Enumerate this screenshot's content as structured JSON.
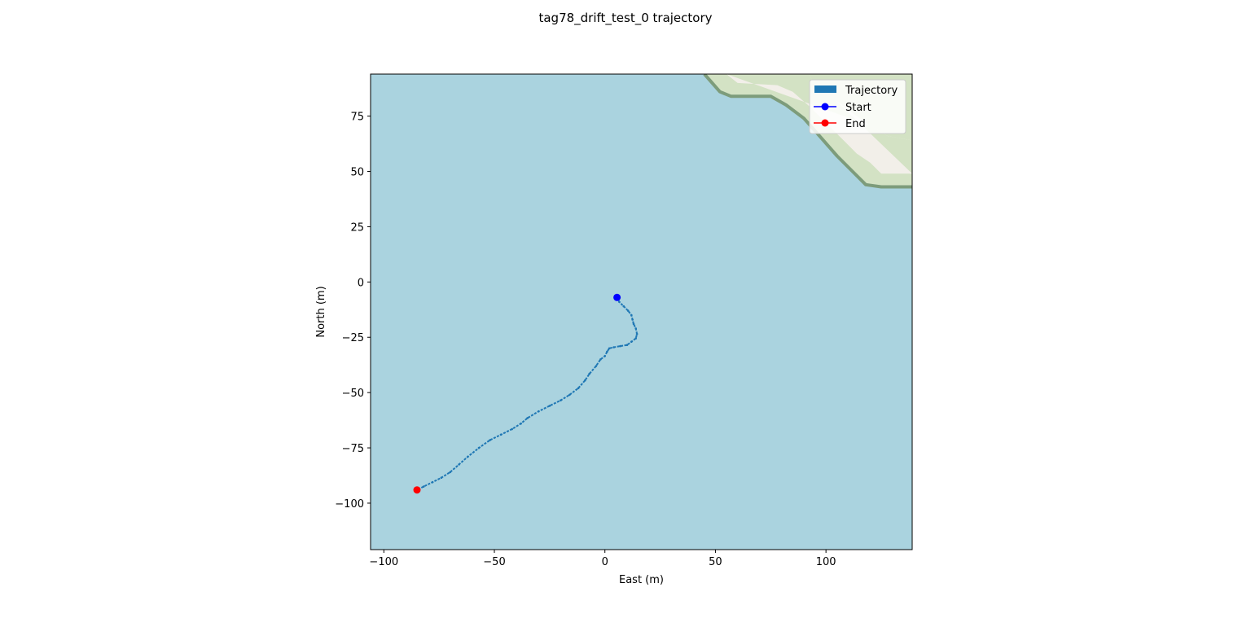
{
  "figure": {
    "title": "tag78_drift_test_0 trajectory"
  },
  "colors": {
    "water": "#aad3df",
    "land": "#f2efe9",
    "park": "#d3e2c4",
    "coast": "#7d9c7b",
    "trajectory": "#1f77b4",
    "start": "#0000ff",
    "end": "#ff0000"
  },
  "chart_data": {
    "type": "line",
    "title": "tag78_drift_test_0 trajectory",
    "xlabel": "East (m)",
    "ylabel": "North (m)",
    "xlim": [
      -106,
      139
    ],
    "ylim": [
      -121,
      94
    ],
    "xticks": [
      -100,
      -50,
      0,
      50,
      100
    ],
    "yticks": [
      -100,
      -75,
      -50,
      -25,
      0,
      25,
      50,
      75
    ],
    "xtick_labels": [
      "−100",
      "−50",
      "0",
      "50",
      "100"
    ],
    "ytick_labels": [
      "−100",
      "−75",
      "−50",
      "−25",
      "0",
      "25",
      "50",
      "75"
    ],
    "grid": false,
    "legend": {
      "position": "top-right",
      "entries": [
        "Trajectory",
        "Start",
        "End"
      ]
    },
    "background": "map tiles: water with coastline in upper-right",
    "series": [
      {
        "name": "Trajectory",
        "x": [
          5.5,
          6.5,
          8.5,
          10.5,
          12,
          12.5,
          13,
          14,
          14.5,
          14,
          12,
          10,
          7,
          4,
          2,
          1,
          0,
          -2,
          -4,
          -7,
          -9,
          -12,
          -16,
          -20,
          -25,
          -30,
          -35,
          -38,
          -42,
          -47,
          -52,
          -57,
          -62,
          -66,
          -70,
          -74,
          -78,
          -82,
          -85
        ],
        "y": [
          -7,
          -9,
          -11,
          -13,
          -15,
          -17,
          -19,
          -21,
          -23.5,
          -25.5,
          -27,
          -28.5,
          -29,
          -29.5,
          -30,
          -31.5,
          -33.5,
          -35,
          -38,
          -41.5,
          -44.5,
          -48,
          -51,
          -53.5,
          -56,
          -58.5,
          -61.5,
          -64,
          -66.5,
          -69,
          -71.5,
          -75,
          -79,
          -82.5,
          -86,
          -88.5,
          -90.5,
          -92.5,
          -94
        ]
      }
    ],
    "markers": [
      {
        "name": "Start",
        "x": 5.5,
        "y": -7
      },
      {
        "name": "End",
        "x": -85,
        "y": -94
      }
    ],
    "land_polygon": [
      [
        45,
        94
      ],
      [
        52,
        86
      ],
      [
        57,
        84
      ],
      [
        65,
        84
      ],
      [
        75,
        84
      ],
      [
        82,
        80
      ],
      [
        90,
        74
      ],
      [
        98,
        65
      ],
      [
        105,
        57
      ],
      [
        112,
        50
      ],
      [
        118,
        44
      ],
      [
        125,
        43
      ],
      [
        139,
        43
      ],
      [
        139,
        94
      ]
    ],
    "park_band": {
      "outer": [
        [
          45,
          94
        ],
        [
          52,
          86
        ],
        [
          57,
          84
        ],
        [
          75,
          84
        ],
        [
          82,
          80
        ],
        [
          90,
          74
        ],
        [
          98,
          65
        ],
        [
          105,
          57
        ],
        [
          112,
          50
        ],
        [
          118,
          44
        ],
        [
          125,
          43
        ],
        [
          139,
          43
        ]
      ],
      "inner": [
        [
          139,
          49
        ],
        [
          125,
          49
        ],
        [
          120,
          54
        ],
        [
          114,
          58
        ],
        [
          108,
          64
        ],
        [
          100,
          72
        ],
        [
          93,
          79
        ],
        [
          85,
          86
        ],
        [
          78,
          89
        ],
        [
          60,
          90
        ],
        [
          55,
          94
        ]
      ]
    },
    "inland_band": {
      "outer": [
        [
          139,
          49
        ],
        [
          125,
          49
        ],
        [
          120,
          54
        ],
        [
          114,
          58
        ],
        [
          108,
          64
        ],
        [
          100,
          72
        ],
        [
          93,
          79
        ],
        [
          85,
          86
        ],
        [
          78,
          89
        ],
        [
          60,
          90
        ],
        [
          55,
          94
        ]
      ],
      "inner": [
        [
          139,
          64
        ],
        [
          128,
          66
        ],
        [
          118,
          72
        ],
        [
          110,
          78
        ],
        [
          102,
          84
        ],
        [
          96,
          88
        ],
        [
          92,
          94
        ]
      ]
    }
  }
}
